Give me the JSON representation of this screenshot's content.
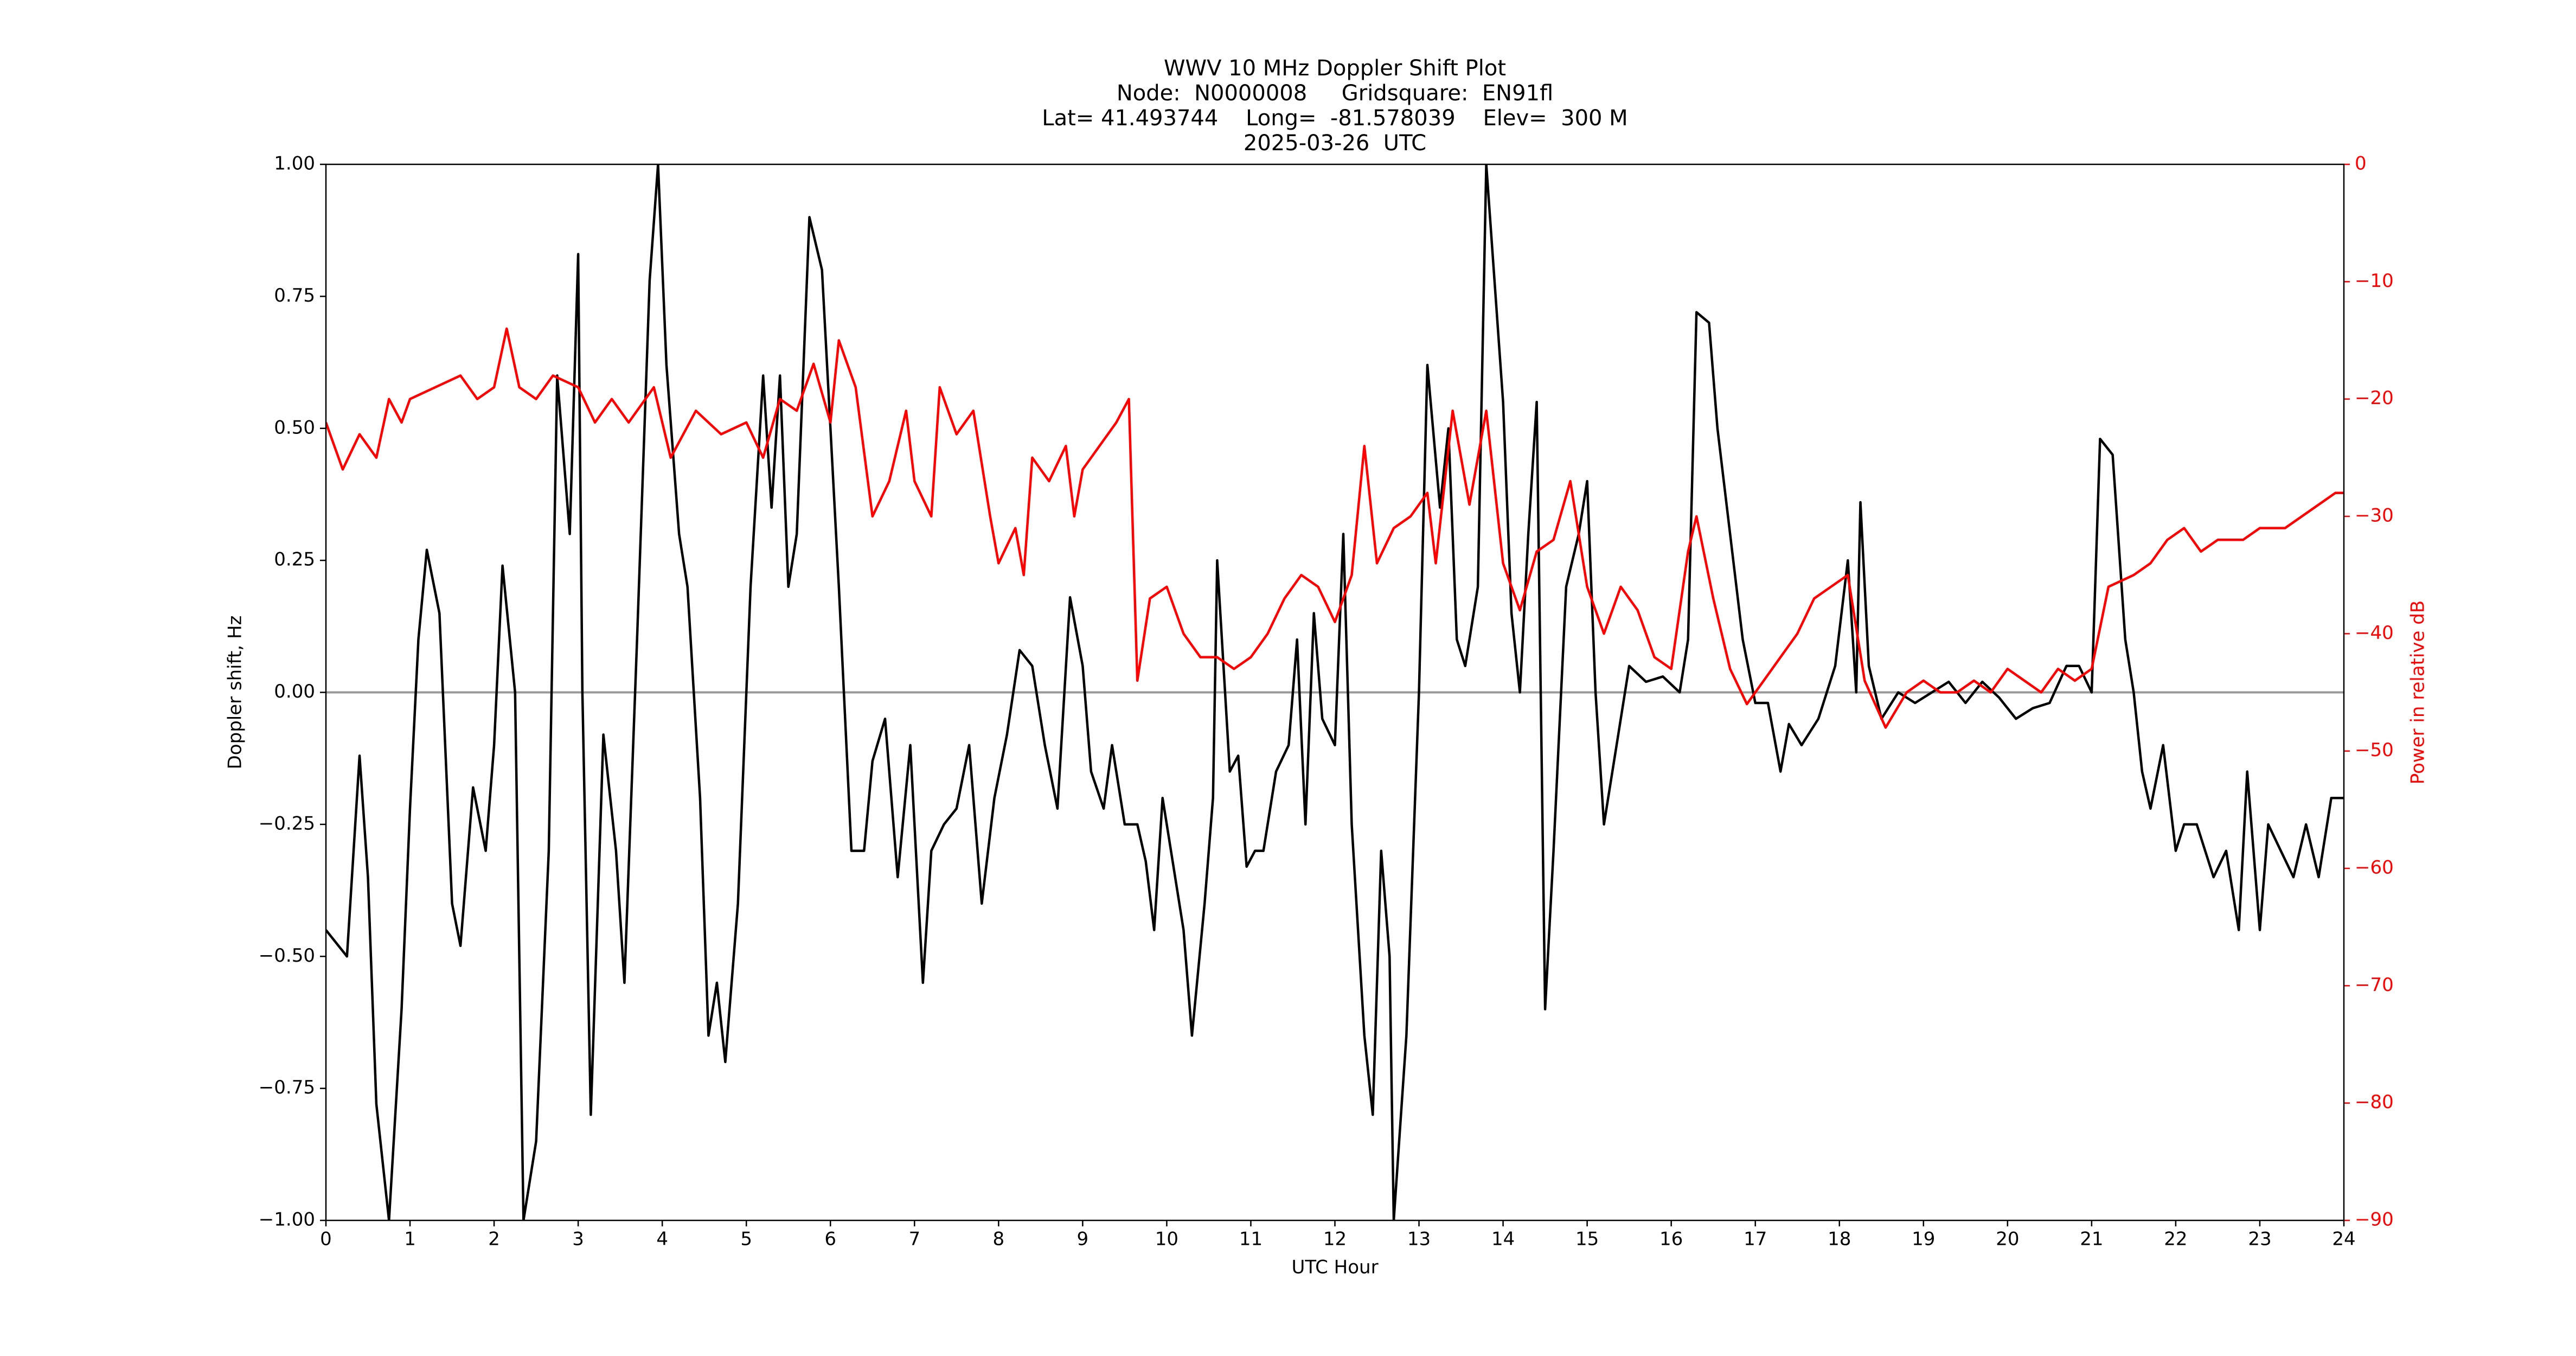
{
  "chart_data": {
    "type": "line",
    "title": [
      "WWV 10 MHz Doppler Shift Plot",
      "Node:  N0000008     Gridsquare:  EN91fl",
      "Lat= 41.493744    Long=  -81.578039    Elev=  300 M",
      "2025-03-26  UTC"
    ],
    "x_label": "UTC Hour",
    "y_label": "Doppler shift, Hz",
    "y2_label": "Power in relative dB",
    "xlim": [
      0,
      24
    ],
    "xticks": [
      0,
      1,
      2,
      3,
      4,
      5,
      6,
      7,
      8,
      9,
      10,
      11,
      12,
      13,
      14,
      15,
      16,
      17,
      18,
      19,
      20,
      21,
      22,
      23,
      24
    ],
    "ylim": [
      -1,
      1
    ],
    "yticks": [
      {
        "value": -1,
        "label": "−1.00"
      },
      {
        "value": -0.75,
        "label": "−0.75"
      },
      {
        "value": -0.5,
        "label": "−0.50"
      },
      {
        "value": -0.25,
        "label": "−0.25"
      },
      {
        "value": 0,
        "label": "0.00"
      },
      {
        "value": 0.25,
        "label": "0.25"
      },
      {
        "value": 0.5,
        "label": "0.50"
      },
      {
        "value": 0.75,
        "label": "0.75"
      },
      {
        "value": 1,
        "label": "1.00"
      }
    ],
    "y2lim": [
      -90,
      0
    ],
    "y2ticks": [
      {
        "value": -90,
        "label": "−90"
      },
      {
        "value": -80,
        "label": "−80"
      },
      {
        "value": -70,
        "label": "−70"
      },
      {
        "value": -60,
        "label": "−60"
      },
      {
        "value": -50,
        "label": "−50"
      },
      {
        "value": -40,
        "label": "−40"
      },
      {
        "value": -30,
        "label": "−30"
      },
      {
        "value": -20,
        "label": "−20"
      },
      {
        "value": -10,
        "label": "−10"
      },
      0
    ],
    "y2_color": "#ff0000",
    "reference_line": 0,
    "reference_color": "#999999",
    "series": [
      {
        "name": "Doppler shift",
        "color": "#000000",
        "axis": "y",
        "x": [
          0,
          0.25,
          0.4,
          0.5,
          0.6,
          0.75,
          0.9,
          1.0,
          1.1,
          1.2,
          1.35,
          1.5,
          1.6,
          1.75,
          1.9,
          2.0,
          2.1,
          2.25,
          2.35,
          2.5,
          2.65,
          2.75,
          2.9,
          3.0,
          3.05,
          3.15,
          3.3,
          3.45,
          3.55,
          3.7,
          3.85,
          3.95,
          4.05,
          4.2,
          4.3,
          4.45,
          4.55,
          4.65,
          4.75,
          4.9,
          5.05,
          5.2,
          5.3,
          5.4,
          5.5,
          5.6,
          5.75,
          5.9,
          6.0,
          6.1,
          6.25,
          6.4,
          6.5,
          6.65,
          6.8,
          6.95,
          7.1,
          7.2,
          7.35,
          7.5,
          7.65,
          7.8,
          7.95,
          8.1,
          8.25,
          8.4,
          8.55,
          8.7,
          8.85,
          9.0,
          9.1,
          9.25,
          9.35,
          9.5,
          9.65,
          9.75,
          9.85,
          9.95,
          10.05,
          10.2,
          10.3,
          10.45,
          10.55,
          10.6,
          10.75,
          10.85,
          10.95,
          11.05,
          11.15,
          11.3,
          11.45,
          11.55,
          11.65,
          11.75,
          11.85,
          12.0,
          12.1,
          12.2,
          12.35,
          12.45,
          12.55,
          12.65,
          12.7,
          12.85,
          13.0,
          13.1,
          13.25,
          13.35,
          13.45,
          13.55,
          13.7,
          13.8,
          14.0,
          14.1,
          14.2,
          14.3,
          14.4,
          14.5,
          14.6,
          14.75,
          14.9,
          15.0,
          15.1,
          15.2,
          15.35,
          15.5,
          15.7,
          15.9,
          16.1,
          16.2,
          16.3,
          16.45,
          16.55,
          16.7,
          16.85,
          17.0,
          17.15,
          17.3,
          17.4,
          17.55,
          17.75,
          17.95,
          18.1,
          18.2,
          18.25,
          18.35,
          18.5,
          18.7,
          18.9,
          19.1,
          19.3,
          19.5,
          19.7,
          19.9,
          20.1,
          20.3,
          20.5,
          20.7,
          20.85,
          21.0,
          21.1,
          21.25,
          21.4,
          21.5,
          21.6,
          21.7,
          21.85,
          22.0,
          22.1,
          22.25,
          22.45,
          22.6,
          22.75,
          22.85,
          23.0,
          23.1,
          23.25,
          23.4,
          23.55,
          23.7,
          23.85,
          24.0
        ],
        "values": [
          -0.45,
          -0.5,
          -0.12,
          -0.35,
          -0.78,
          -1.0,
          -0.6,
          -0.22,
          0.1,
          0.27,
          0.15,
          -0.4,
          -0.48,
          -0.18,
          -0.3,
          -0.1,
          0.24,
          0.0,
          -1.0,
          -0.85,
          -0.3,
          0.6,
          0.3,
          0.83,
          0.0,
          -0.8,
          -0.08,
          -0.3,
          -0.55,
          0.1,
          0.78,
          1.0,
          0.62,
          0.3,
          0.2,
          -0.2,
          -0.65,
          -0.55,
          -0.7,
          -0.4,
          0.2,
          0.6,
          0.35,
          0.6,
          0.2,
          0.3,
          0.9,
          0.8,
          0.5,
          0.2,
          -0.3,
          -0.3,
          -0.13,
          -0.05,
          -0.35,
          -0.1,
          -0.55,
          -0.3,
          -0.25,
          -0.22,
          -0.1,
          -0.4,
          -0.2,
          -0.08,
          0.08,
          0.05,
          -0.1,
          -0.22,
          0.18,
          0.05,
          -0.15,
          -0.22,
          -0.1,
          -0.25,
          -0.25,
          -0.32,
          -0.45,
          -0.2,
          -0.3,
          -0.45,
          -0.65,
          -0.4,
          -0.2,
          0.25,
          -0.15,
          -0.12,
          -0.33,
          -0.3,
          -0.3,
          -0.15,
          -0.1,
          0.1,
          -0.25,
          0.15,
          -0.05,
          -0.1,
          0.3,
          -0.25,
          -0.65,
          -0.8,
          -0.3,
          -0.5,
          -1.0,
          -0.65,
          0.0,
          0.62,
          0.35,
          0.5,
          0.1,
          0.05,
          0.2,
          1.0,
          0.55,
          0.15,
          0.0,
          0.3,
          0.55,
          -0.6,
          -0.3,
          0.2,
          0.3,
          0.4,
          0.0,
          -0.25,
          -0.1,
          0.05,
          0.02,
          0.03,
          0.0,
          0.1,
          0.72,
          0.7,
          0.5,
          0.3,
          0.1,
          -0.02,
          -0.02,
          -0.15,
          -0.06,
          -0.1,
          -0.05,
          0.05,
          0.25,
          0.0,
          0.36,
          0.05,
          -0.05,
          0.0,
          -0.02,
          0.0,
          0.02,
          -0.02,
          0.02,
          -0.01,
          -0.05,
          -0.03,
          -0.02,
          0.05,
          0.05,
          0.0,
          0.48,
          0.45,
          0.1,
          0.0,
          -0.15,
          -0.22,
          -0.1,
          -0.3,
          -0.25,
          -0.25,
          -0.35,
          -0.3,
          -0.45,
          -0.15,
          -0.45,
          -0.25,
          -0.3,
          -0.35,
          -0.25,
          -0.35,
          -0.2,
          -0.2
        ]
      },
      {
        "name": "Power",
        "color": "#ff0000",
        "axis": "y2",
        "x": [
          0,
          0.2,
          0.4,
          0.6,
          0.75,
          0.9,
          1.0,
          1.3,
          1.6,
          1.8,
          2.0,
          2.15,
          2.3,
          2.5,
          2.7,
          3.0,
          3.2,
          3.4,
          3.6,
          3.9,
          4.1,
          4.4,
          4.7,
          5.0,
          5.2,
          5.4,
          5.6,
          5.8,
          6.0,
          6.1,
          6.3,
          6.5,
          6.7,
          6.9,
          7.0,
          7.2,
          7.3,
          7.5,
          7.7,
          7.9,
          8.0,
          8.2,
          8.3,
          8.4,
          8.6,
          8.8,
          8.9,
          9.0,
          9.2,
          9.4,
          9.55,
          9.65,
          9.8,
          10.0,
          10.2,
          10.4,
          10.6,
          10.8,
          11.0,
          11.2,
          11.4,
          11.6,
          11.8,
          12.0,
          12.2,
          12.35,
          12.5,
          12.7,
          12.9,
          13.1,
          13.2,
          13.4,
          13.6,
          13.8,
          14.0,
          14.2,
          14.4,
          14.6,
          14.8,
          15.0,
          15.2,
          15.4,
          15.6,
          15.8,
          16.0,
          16.2,
          16.3,
          16.5,
          16.7,
          16.9,
          17.1,
          17.3,
          17.5,
          17.7,
          17.9,
          18.1,
          18.3,
          18.55,
          18.8,
          19.0,
          19.2,
          19.4,
          19.6,
          19.8,
          20.0,
          20.2,
          20.4,
          20.6,
          20.8,
          21.0,
          21.2,
          21.5,
          21.7,
          21.9,
          22.1,
          22.3,
          22.5,
          22.8,
          23.0,
          23.3,
          23.5,
          23.7,
          23.9,
          24.0
        ],
        "values": [
          -22,
          -26,
          -23,
          -25,
          -20,
          -22,
          -20,
          -19,
          -18,
          -20,
          -19,
          -14,
          -19,
          -20,
          -18,
          -19,
          -22,
          -20,
          -22,
          -19,
          -25,
          -21,
          -23,
          -22,
          -25,
          -20,
          -21,
          -17,
          -22,
          -15,
          -19,
          -30,
          -27,
          -21,
          -27,
          -30,
          -19,
          -23,
          -21,
          -30,
          -34,
          -31,
          -35,
          -25,
          -27,
          -24,
          -30,
          -26,
          -24,
          -22,
          -20,
          -44,
          -37,
          -36,
          -40,
          -42,
          -42,
          -43,
          -42,
          -40,
          -37,
          -35,
          -36,
          -39,
          -35,
          -24,
          -34,
          -31,
          -30,
          -28,
          -34,
          -21,
          -29,
          -21,
          -34,
          -38,
          -33,
          -32,
          -27,
          -36,
          -40,
          -36,
          -38,
          -42,
          -43,
          -33,
          -30,
          -37,
          -43,
          -46,
          -44,
          -42,
          -40,
          -37,
          -36,
          -35,
          -44,
          -48,
          -45,
          -44,
          -45,
          -45,
          -44,
          -45,
          -43,
          -44,
          -45,
          -43,
          -44,
          -43,
          -36,
          -35,
          -34,
          -32,
          -31,
          -33,
          -32,
          -32,
          -31,
          -31,
          -30,
          -29,
          -28,
          -28
        ]
      }
    ]
  }
}
